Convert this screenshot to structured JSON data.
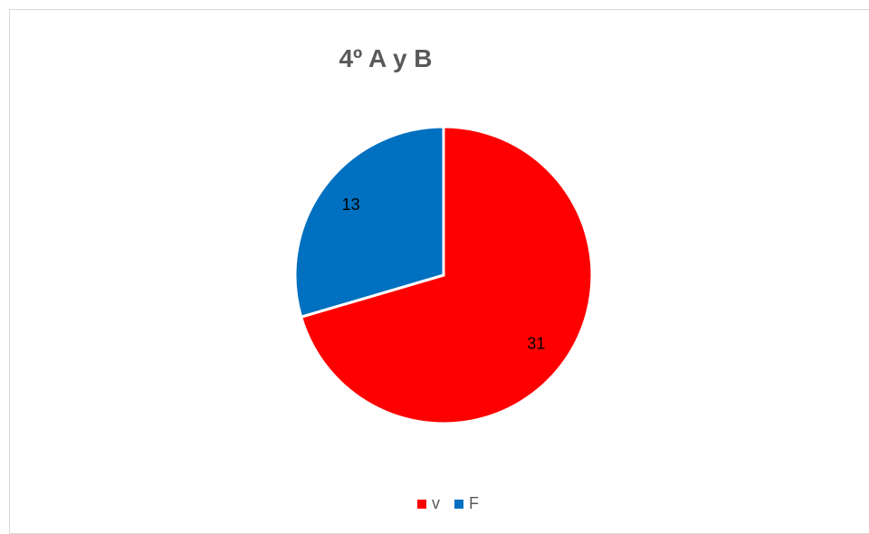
{
  "chart_data": {
    "type": "pie",
    "title": "4º A y B",
    "categories": [
      "v",
      "F"
    ],
    "values": [
      31,
      13
    ],
    "colors": [
      "#ff0000",
      "#0070c0"
    ],
    "data_labels": [
      "31",
      "13"
    ],
    "legend_position": "bottom"
  }
}
